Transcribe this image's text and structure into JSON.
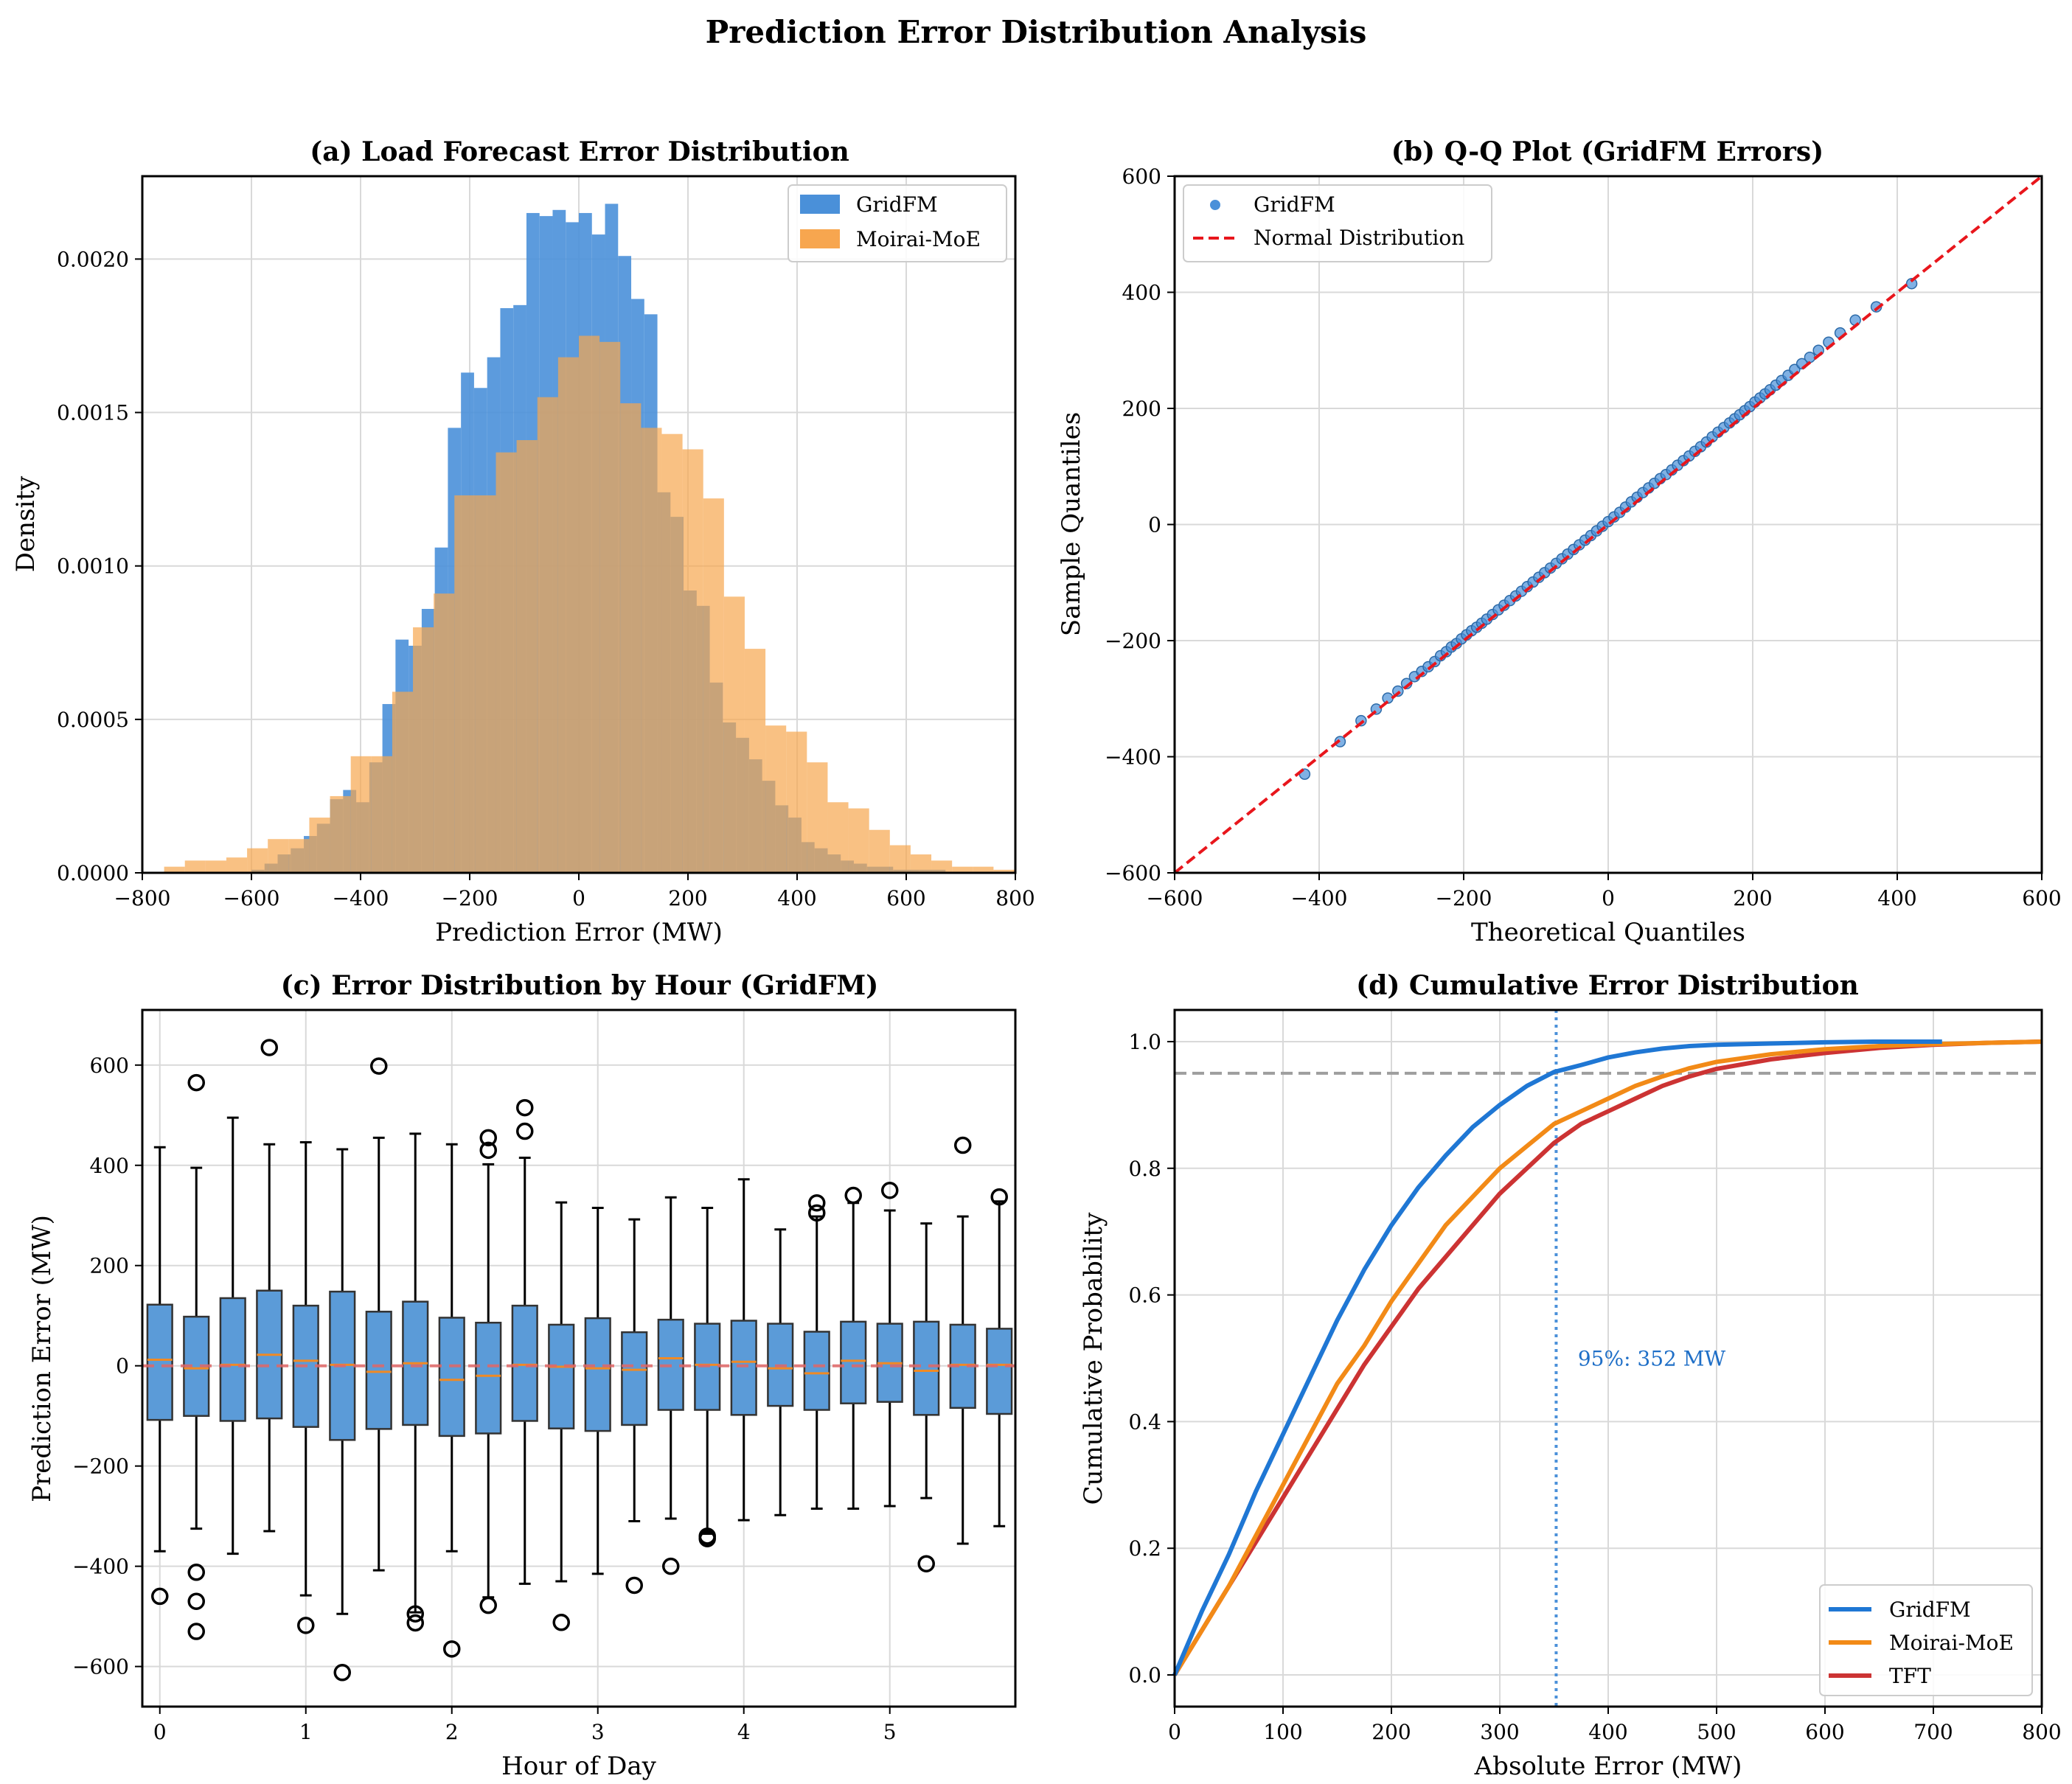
{
  "suptitle": "Prediction Error Distribution Analysis",
  "chart_data": [
    {
      "type": "histogram",
      "title": "(a) Load Forecast Error Distribution",
      "xlabel": "Prediction Error (MW)",
      "ylabel": "Density",
      "xlim": [
        -800,
        800
      ],
      "ylim": [
        0,
        0.00227
      ],
      "xticks": [
        -800,
        -600,
        -400,
        -200,
        0,
        200,
        400,
        600,
        800
      ],
      "yticks": [
        0.0,
        0.0005,
        0.001,
        0.0015,
        0.002
      ],
      "ytick_labels": [
        "0.0000",
        "0.0005",
        "0.0010",
        "0.0015",
        "0.0020"
      ],
      "legend": "top-right",
      "series": [
        {
          "name": "GridFM",
          "color": "#4a90d9",
          "bin_start": -600,
          "bin_width": 24,
          "values": [
            1e-05,
            3e-05,
            6e-05,
            8e-05,
            0.00012,
            0.00016,
            0.00024,
            0.00027,
            0.00023,
            0.00036,
            0.00055,
            0.00076,
            0.00074,
            0.00086,
            0.00106,
            0.00145,
            0.00163,
            0.00158,
            0.00168,
            0.00184,
            0.00185,
            0.00215,
            0.00214,
            0.00216,
            0.00212,
            0.00215,
            0.00208,
            0.00218,
            0.00201,
            0.00187,
            0.00182,
            0.00124,
            0.00116,
            0.00092,
            0.00087,
            0.00062,
            0.00049,
            0.00044,
            0.00037,
            0.0003,
            0.00022,
            0.00018,
            0.0001,
            8e-05,
            6e-05,
            4e-05,
            3e-05,
            2e-05,
            2e-05,
            1e-05,
            1e-05,
            1e-05,
            1e-05
          ]
        },
        {
          "name": "Moirai-MoE",
          "color": "#f7a64f",
          "bin_start": -760,
          "bin_width": 38,
          "values": [
            2e-05,
            4e-05,
            4e-05,
            5e-05,
            8e-05,
            0.00011,
            0.00011,
            0.00018,
            0.00025,
            0.00038,
            0.00038,
            0.00059,
            0.0008,
            0.00091,
            0.00123,
            0.00123,
            0.00137,
            0.00141,
            0.00155,
            0.00168,
            0.00175,
            0.00173,
            0.00153,
            0.00145,
            0.00143,
            0.00138,
            0.00122,
            0.0009,
            0.00073,
            0.00048,
            0.00046,
            0.00036,
            0.00023,
            0.00021,
            0.00014,
            9e-05,
            6e-05,
            4e-05,
            2e-05,
            2e-05,
            1e-05
          ]
        }
      ]
    },
    {
      "type": "scatter",
      "title": "(b) Q-Q Plot (GridFM Errors)",
      "xlabel": "Theoretical Quantiles",
      "ylabel": "Sample Quantiles",
      "xlim": [
        -600,
        600
      ],
      "ylim": [
        -600,
        600
      ],
      "xticks": [
        -600,
        -400,
        -200,
        0,
        200,
        400,
        600
      ],
      "yticks": [
        -600,
        -400,
        -200,
        0,
        200,
        400,
        600
      ],
      "legend": "top-left",
      "series": [
        {
          "name": "GridFM",
          "color": "#4a90d9",
          "x": [
            -420,
            -371,
            -342,
            -321,
            -305,
            -291,
            -279,
            -268,
            -258,
            -249,
            -240,
            -232,
            -224,
            -217,
            -210,
            -203,
            -196,
            -189,
            -182,
            -175,
            -168,
            -160,
            -152,
            -144,
            -136,
            -128,
            -120,
            -112,
            -104,
            -96,
            -88,
            -80,
            -72,
            -64,
            -56,
            -48,
            -40,
            -32,
            -24,
            -16,
            -8,
            0,
            8,
            16,
            24,
            32,
            40,
            48,
            56,
            64,
            72,
            80,
            88,
            96,
            104,
            112,
            120,
            128,
            136,
            144,
            152,
            160,
            168,
            175,
            182,
            189,
            196,
            203,
            210,
            217,
            224,
            232,
            240,
            249,
            258,
            268,
            279,
            291,
            305,
            321,
            342,
            371,
            420
          ],
          "y": [
            -430,
            -374,
            -338,
            -318,
            -299,
            -287,
            -274,
            -262,
            -253,
            -245,
            -236,
            -226,
            -219,
            -211,
            -205,
            -197,
            -190,
            -183,
            -177,
            -170,
            -163,
            -155,
            -147,
            -139,
            -131,
            -123,
            -115,
            -107,
            -99,
            -91,
            -83,
            -75,
            -67,
            -59,
            -51,
            -43,
            -35,
            -27,
            -19,
            -11,
            -3,
            5,
            13,
            21,
            30,
            39,
            47,
            55,
            63,
            71,
            79,
            86,
            94,
            102,
            110,
            118,
            126,
            134,
            142,
            151,
            159,
            167,
            175,
            182,
            189,
            196,
            203,
            211,
            218,
            225,
            232,
            240,
            248,
            257,
            267,
            277,
            288,
            300,
            314,
            330,
            352,
            375,
            415
          ]
        },
        {
          "name": "Normal Distribution",
          "color": "#e8161c",
          "x": [
            -600,
            600
          ],
          "y": [
            -600,
            600
          ]
        }
      ]
    },
    {
      "type": "boxplot",
      "title": "(c) Error Distribution by Hour (GridFM)",
      "xlabel": "Hour of Day",
      "ylabel": "Prediction Error (MW)",
      "xlim": [
        -0.12,
        5.86
      ],
      "ylim": [
        -680,
        710
      ],
      "xticks": [
        0,
        1,
        2,
        3,
        4,
        5
      ],
      "yticks": [
        -600,
        -400,
        -200,
        0,
        200,
        400,
        600
      ],
      "box_color": "#5b9bd8",
      "median_color": "#f08a24",
      "zero_line_color": "#e06666",
      "positions": [
        0,
        0.25,
        0.5,
        0.75,
        1,
        1.25,
        1.5,
        1.75,
        2,
        2.25,
        2.5,
        2.75,
        3,
        3.25,
        3.5,
        3.75,
        4,
        4.25,
        4.5,
        4.75,
        5,
        5.25,
        5.5,
        5.75
      ],
      "boxes": [
        {
          "whislo": -370,
          "q1": -108,
          "med": 12,
          "q3": 122,
          "whishi": 436,
          "fliers": [
            -460
          ]
        },
        {
          "whislo": -325,
          "q1": -100,
          "med": -5,
          "q3": 98,
          "whishi": 395,
          "fliers": [
            565,
            -412,
            -470,
            -530
          ]
        },
        {
          "whislo": -375,
          "q1": -110,
          "med": 2,
          "q3": 135,
          "whishi": 495,
          "fliers": []
        },
        {
          "whislo": -330,
          "q1": -105,
          "med": 22,
          "q3": 150,
          "whishi": 442,
          "fliers": [
            635
          ]
        },
        {
          "whislo": -458,
          "q1": -122,
          "med": 10,
          "q3": 120,
          "whishi": 446,
          "fliers": [
            -518
          ]
        },
        {
          "whislo": -495,
          "q1": -148,
          "med": 2,
          "q3": 148,
          "whishi": 432,
          "fliers": [
            -612
          ]
        },
        {
          "whislo": -408,
          "q1": -126,
          "med": -12,
          "q3": 108,
          "whishi": 455,
          "fliers": [
            598
          ]
        },
        {
          "whislo": -492,
          "q1": -118,
          "med": 5,
          "q3": 128,
          "whishi": 463,
          "fliers": [
            -495,
            -513
          ]
        },
        {
          "whislo": -370,
          "q1": -140,
          "med": -28,
          "q3": 96,
          "whishi": 442,
          "fliers": [
            -565
          ]
        },
        {
          "whislo": -462,
          "q1": -135,
          "med": -20,
          "q3": 86,
          "whishi": 402,
          "fliers": [
            455,
            430,
            -478
          ]
        },
        {
          "whislo": -435,
          "q1": -110,
          "med": 2,
          "q3": 120,
          "whishi": 415,
          "fliers": [
            515,
            468
          ]
        },
        {
          "whislo": -430,
          "q1": -125,
          "med": -2,
          "q3": 82,
          "whishi": 326,
          "fliers": [
            -512
          ]
        },
        {
          "whislo": -415,
          "q1": -130,
          "med": -5,
          "q3": 95,
          "whishi": 315,
          "fliers": []
        },
        {
          "whislo": -310,
          "q1": -118,
          "med": -8,
          "q3": 67,
          "whishi": 292,
          "fliers": [
            -438
          ]
        },
        {
          "whislo": -305,
          "q1": -88,
          "med": 15,
          "q3": 92,
          "whishi": 336,
          "fliers": [
            -400
          ]
        },
        {
          "whislo": -335,
          "q1": -88,
          "med": 2,
          "q3": 84,
          "whishi": 315,
          "fliers": [
            -340,
            -345
          ]
        },
        {
          "whislo": -308,
          "q1": -98,
          "med": 8,
          "q3": 90,
          "whishi": 372,
          "fliers": []
        },
        {
          "whislo": -298,
          "q1": -80,
          "med": -5,
          "q3": 84,
          "whishi": 272,
          "fliers": []
        },
        {
          "whislo": -285,
          "q1": -88,
          "med": -15,
          "q3": 68,
          "whishi": 298,
          "fliers": [
            325,
            305
          ]
        },
        {
          "whislo": -285,
          "q1": -75,
          "med": 10,
          "q3": 88,
          "whishi": 325,
          "fliers": [
            340
          ]
        },
        {
          "whislo": -280,
          "q1": -72,
          "med": 5,
          "q3": 84,
          "whishi": 310,
          "fliers": [
            350
          ]
        },
        {
          "whislo": -264,
          "q1": -98,
          "med": -10,
          "q3": 88,
          "whishi": 284,
          "fliers": [
            -395
          ]
        },
        {
          "whislo": -355,
          "q1": -84,
          "med": 2,
          "q3": 82,
          "whishi": 298,
          "fliers": [
            440
          ]
        },
        {
          "whislo": -320,
          "q1": -96,
          "med": 2,
          "q3": 74,
          "whishi": 328,
          "fliers": [
            337
          ]
        }
      ]
    },
    {
      "type": "line",
      "title": "(d) Cumulative Error Distribution",
      "xlabel": "Absolute Error (MW)",
      "ylabel": "Cumulative Probability",
      "xlim": [
        0,
        800
      ],
      "ylim": [
        -0.05,
        1.05
      ],
      "xticks": [
        0,
        100,
        200,
        300,
        400,
        500,
        600,
        700,
        800
      ],
      "yticks": [
        0.0,
        0.2,
        0.4,
        0.6,
        0.8,
        1.0
      ],
      "ytick_labels": [
        "0.0",
        "0.2",
        "0.4",
        "0.6",
        "0.8",
        "1.0"
      ],
      "legend": "bottom-right",
      "hline": {
        "y": 0.95,
        "color": "#9e9e9e",
        "style": "dashed"
      },
      "vline": {
        "x": 352,
        "color": "#4a90d9",
        "style": "dotted"
      },
      "annotation": {
        "text": "95%: 352 MW",
        "x": 372,
        "y": 0.5,
        "color": "#1f6fc7"
      },
      "series": [
        {
          "name": "GridFM",
          "color": "#1f77d4",
          "x": [
            0,
            25,
            50,
            75,
            100,
            125,
            150,
            175,
            200,
            225,
            250,
            275,
            300,
            325,
            350,
            375,
            400,
            425,
            450,
            475,
            500,
            550,
            600,
            650,
            700,
            708
          ],
          "y": [
            0,
            0.1,
            0.19,
            0.29,
            0.38,
            0.47,
            0.56,
            0.64,
            0.71,
            0.77,
            0.82,
            0.865,
            0.9,
            0.93,
            0.952,
            0.963,
            0.975,
            0.983,
            0.989,
            0.993,
            0.995,
            0.997,
            0.999,
            1.0,
            1.0,
            1.0
          ]
        },
        {
          "name": "Moirai-MoE",
          "color": "#f28a17",
          "x": [
            0,
            25,
            50,
            75,
            100,
            125,
            150,
            175,
            200,
            225,
            250,
            275,
            300,
            325,
            350,
            375,
            400,
            425,
            450,
            475,
            500,
            550,
            600,
            650,
            700,
            750,
            800
          ],
          "y": [
            0,
            0.07,
            0.14,
            0.22,
            0.3,
            0.38,
            0.46,
            0.52,
            0.59,
            0.65,
            0.71,
            0.755,
            0.8,
            0.835,
            0.87,
            0.89,
            0.91,
            0.93,
            0.945,
            0.958,
            0.968,
            0.98,
            0.988,
            0.993,
            0.996,
            0.998,
            1.0
          ]
        },
        {
          "name": "TFT",
          "color": "#cc3333",
          "x": [
            0,
            25,
            50,
            75,
            100,
            125,
            150,
            175,
            200,
            225,
            250,
            275,
            300,
            325,
            350,
            375,
            400,
            425,
            450,
            475,
            500,
            550,
            600,
            650,
            700,
            750,
            800
          ],
          "y": [
            0,
            0.07,
            0.14,
            0.21,
            0.28,
            0.35,
            0.42,
            0.49,
            0.55,
            0.61,
            0.66,
            0.71,
            0.76,
            0.8,
            0.84,
            0.87,
            0.89,
            0.91,
            0.93,
            0.945,
            0.957,
            0.972,
            0.982,
            0.99,
            0.995,
            0.998,
            1.0
          ]
        }
      ]
    }
  ]
}
